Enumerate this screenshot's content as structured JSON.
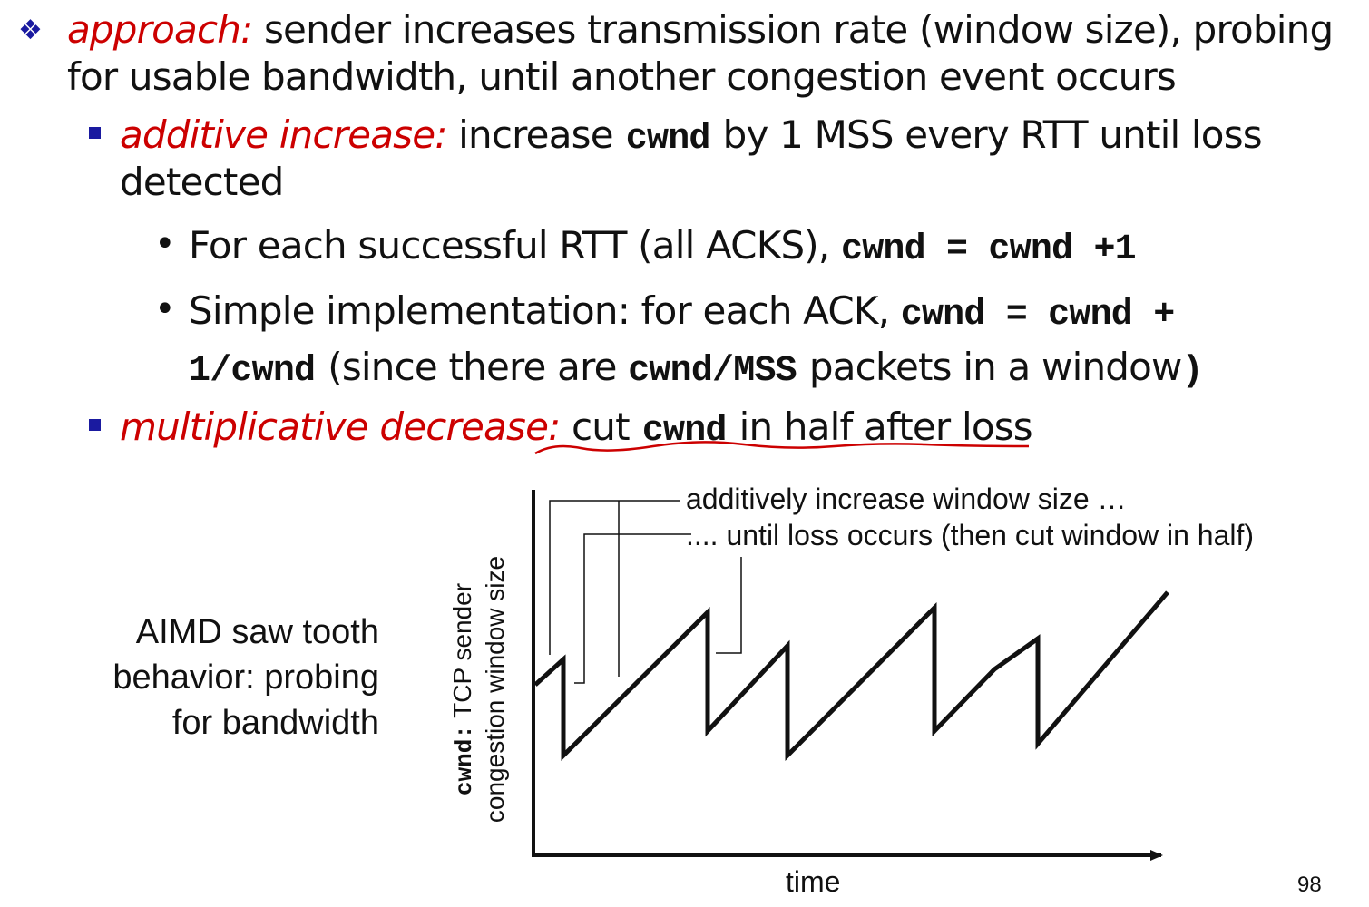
{
  "bullets": {
    "approach": {
      "label": "approach:",
      "line1": " sender increases transmission rate (window size), probing",
      "line2": "for usable bandwidth, until another congestion event occurs"
    },
    "additive": {
      "label": "additive increase:",
      "text_a": " increase",
      "code": "cwnd",
      "text_b": "by 1 MSS every RTT until loss",
      "line2": "detected",
      "sub1": {
        "text": "For each successful RTT (all ACKS), ",
        "code": "cwnd = cwnd +1"
      },
      "sub2": {
        "text": "Simple implementation: for each ACK, ",
        "code_a": "cwnd = cwnd +",
        "code_b": "1/cwnd",
        "text_b": "(since there are ",
        "code_c": "cwnd/MSS",
        "text_c": "packets in a window",
        "paren": ")"
      }
    },
    "multiplicative": {
      "label": "multiplicative decrease:",
      "text_a": " cut",
      "code": "cwnd",
      "text_b": "in half after loss"
    }
  },
  "figure": {
    "caption": [
      "AIMD saw tooth",
      "behavior: probing",
      "for bandwidth"
    ],
    "annotation_increase": "additively increase window size …",
    "annotation_loss": ".... until loss occurs (then cut window in half)",
    "ylabel_code": "cwnd:",
    "ylabel_text1": " TCP sender",
    "ylabel_text2": "congestion window size",
    "xlabel": "time"
  },
  "colors": {
    "emphasis_red": "#cc0000",
    "bullet_blue": "#1a1aa0",
    "line": "#111111"
  },
  "page_number": "98"
}
